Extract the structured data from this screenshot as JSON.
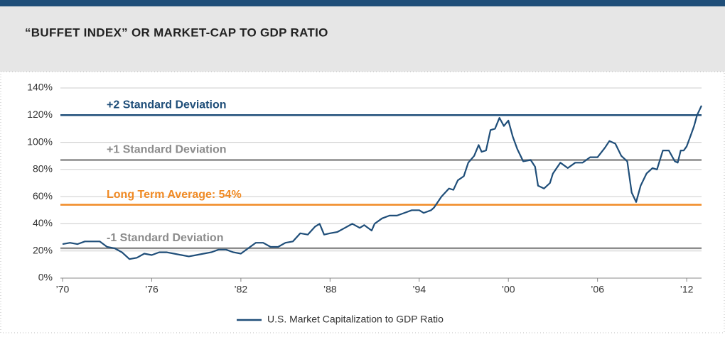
{
  "chart_data": {
    "type": "line",
    "title": "“BUFFET INDEX” OR MARKET-CAP TO GDP RATIO",
    "xlim": [
      1970,
      2013
    ],
    "xticks": [
      {
        "value": 1970,
        "label": "’70"
      },
      {
        "value": 1976,
        "label": "’76"
      },
      {
        "value": 1982,
        "label": "’82"
      },
      {
        "value": 1988,
        "label": "’88"
      },
      {
        "value": 1994,
        "label": "’94"
      },
      {
        "value": 2000,
        "label": "’00"
      },
      {
        "value": 2006,
        "label": "’06"
      },
      {
        "value": 2012,
        "label": "’12"
      }
    ],
    "ylim": [
      0,
      140
    ],
    "yticks": [
      {
        "value": 0,
        "label": "0%"
      },
      {
        "value": 20,
        "label": "20%"
      },
      {
        "value": 40,
        "label": "40%"
      },
      {
        "value": 60,
        "label": "60%"
      },
      {
        "value": 80,
        "label": "80%"
      },
      {
        "value": 100,
        "label": "100%"
      },
      {
        "value": 120,
        "label": "120%"
      },
      {
        "value": 140,
        "label": "140%"
      }
    ],
    "grid": true,
    "legend": "bottom",
    "reference_lines": [
      {
        "label": "+2 Standard Deviation",
        "value": 120,
        "color": "#1f4e79"
      },
      {
        "label": "+1 Standard Deviation",
        "value": 87,
        "color": "#8c8c8c"
      },
      {
        "label": "Long Term Average: 54%",
        "value": 54,
        "color": "#f08a24"
      },
      {
        "label": "-1 Standard Deviation",
        "value": 22,
        "color": "#8c8c8c"
      }
    ],
    "x": [
      1970,
      1970.5,
      1971,
      1971.5,
      1972,
      1972.5,
      1973,
      1973.5,
      1974,
      1974.5,
      1975,
      1975.5,
      1976,
      1976.5,
      1977,
      1977.5,
      1978,
      1978.5,
      1979,
      1979.5,
      1980,
      1980.5,
      1981,
      1981.5,
      1982,
      1982.5,
      1983,
      1983.5,
      1984,
      1984.5,
      1985,
      1985.5,
      1986,
      1986.5,
      1987,
      1987.3,
      1987.6,
      1988,
      1988.5,
      1989,
      1989.5,
      1990,
      1990.3,
      1990.8,
      1991,
      1991.5,
      1992,
      1992.5,
      1993,
      1993.5,
      1994,
      1994.3,
      1994.8,
      1995,
      1995.5,
      1996,
      1996.3,
      1996.6,
      1997,
      1997.3,
      1997.7,
      1998,
      1998.2,
      1998.5,
      1998.8,
      1999.1,
      1999.4,
      1999.7,
      2000,
      2000.3,
      2000.6,
      2001,
      2001.5,
      2001.8,
      2002,
      2002.4,
      2002.8,
      2003,
      2003.5,
      2004,
      2004.5,
      2005,
      2005.5,
      2006,
      2006.5,
      2006.8,
      2007.2,
      2007.6,
      2008,
      2008.3,
      2008.6,
      2008.9,
      2009.3,
      2009.7,
      2010,
      2010.4,
      2010.8,
      2011.2,
      2011.4,
      2011.6,
      2011.8,
      2012,
      2012.3,
      2012.5,
      2012.7,
      2013
    ],
    "series": [
      {
        "name": "U.S. Market Capitalization to GDP Ratio",
        "color": "#1f4e79",
        "values": [
          25,
          26,
          25,
          27,
          27,
          27,
          23,
          22,
          19,
          14,
          15,
          18,
          17,
          19,
          19,
          18,
          17,
          16,
          17,
          18,
          19,
          21,
          21,
          19,
          18,
          22,
          26,
          26,
          23,
          23,
          26,
          27,
          33,
          32,
          38,
          40,
          32,
          33,
          34,
          37,
          40,
          37,
          39,
          35,
          40,
          44,
          46,
          46,
          48,
          50,
          50,
          48,
          50,
          52,
          60,
          66,
          65,
          72,
          75,
          85,
          90,
          98,
          93,
          94,
          109,
          110,
          118,
          112,
          116,
          104,
          95,
          86,
          87,
          82,
          68,
          66,
          70,
          77,
          85,
          81,
          85,
          85,
          89,
          89,
          96,
          101,
          99,
          90,
          86,
          63,
          56,
          68,
          77,
          81,
          80,
          94,
          94,
          86,
          85,
          94,
          94,
          97,
          106,
          112,
          120,
          127
        ]
      }
    ]
  }
}
